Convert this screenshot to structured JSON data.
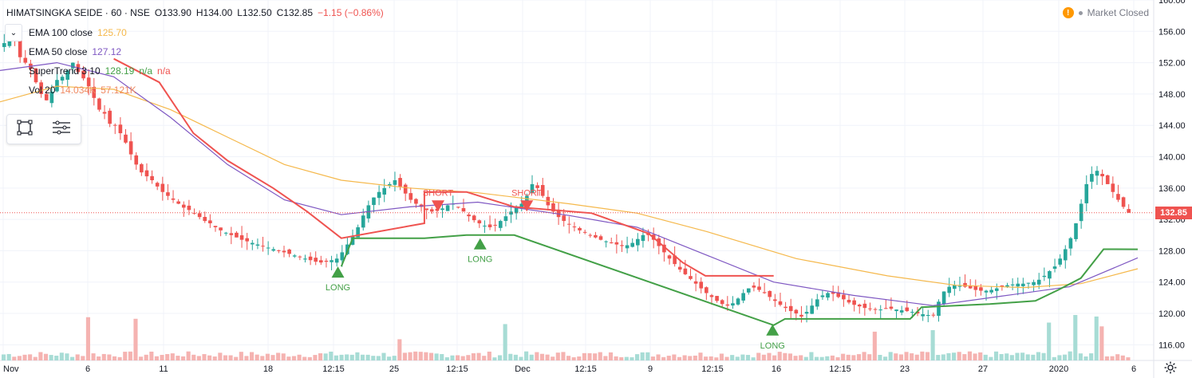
{
  "header": {
    "symbol": "HIMATSINGKA SEIDE · 60 · NSE",
    "open": "O133.90",
    "high": "H134.00",
    "low": "L132.50",
    "close": "C132.85",
    "change": "−1.15 (−0.86%)",
    "market_status": "Market Closed",
    "warning_icon": "!"
  },
  "indicators": [
    {
      "name": "EMA 100 close",
      "value": "125.70",
      "color": "#f5b84b"
    },
    {
      "name": "EMA 50 close",
      "value": "127.12",
      "color": "#7e57c2"
    },
    {
      "name": "SuperTrend 3 10",
      "value": "128.19",
      "extra": "n/a",
      "extra2": "n/a",
      "color": "#43a047"
    },
    {
      "name": "Vol 20",
      "value": "14.034K",
      "extra": "57.121K",
      "color": "#ef8a62"
    }
  ],
  "colors": {
    "up": "#26a69a",
    "down": "#ef5350",
    "st_up": "#43a047",
    "st_down": "#ef5350",
    "ema100": "#f5b84b",
    "ema50": "#7e57c2"
  },
  "last_price": "132.85",
  "chart_data": {
    "type": "candlestick",
    "y_axis": {
      "min": 114,
      "max": 160,
      "ticks": [
        "160.00",
        "156.00",
        "152.00",
        "148.00",
        "144.00",
        "140.00",
        "136.00",
        "132.00",
        "128.00",
        "124.00",
        "120.00",
        "116.00"
      ]
    },
    "x_axis": {
      "ticks": [
        "Nov",
        "6",
        "11",
        "18",
        "12:15",
        "25",
        "12:15",
        "Dec",
        "12:15",
        "9",
        "12:15",
        "16",
        "12:15",
        "23",
        "27",
        "2020",
        "6"
      ]
    },
    "last_price": 132.85,
    "close_path": [
      154.5,
      155.8,
      155.0,
      152.7,
      152.0,
      151.2,
      149.5,
      148.0,
      147.2,
      148.3,
      149.8,
      150.2,
      151.0,
      152.0,
      150.8,
      150.0,
      149.0,
      147.5,
      146.0,
      145.5,
      144.2,
      144.0,
      143.0,
      141.8,
      140.3,
      139.0,
      138.0,
      137.5,
      137.0,
      136.2,
      135.5,
      135.0,
      134.5,
      134.0,
      133.5,
      133.2,
      132.8,
      132.3,
      131.8,
      131.5,
      131.0,
      130.6,
      130.3,
      130.0,
      129.7,
      129.4,
      129.2,
      129.0,
      128.8,
      128.6,
      128.4,
      128.2,
      128.0,
      127.8,
      127.6,
      127.4,
      127.2,
      127.0,
      126.8,
      126.6,
      126.5,
      126.6,
      126.8,
      127.0,
      127.8,
      128.8,
      129.8,
      131.0,
      132.5,
      133.8,
      134.8,
      135.5,
      136.0,
      136.5,
      137.0,
      136.2,
      135.3,
      134.5,
      134.0,
      133.6,
      133.2,
      133.0,
      133.1,
      133.4,
      133.8,
      134.0,
      133.6,
      133.0,
      132.4,
      131.9,
      131.5,
      131.2,
      131.0,
      131.3,
      131.8,
      132.4,
      133.0,
      133.6,
      134.0,
      135.0,
      136.5,
      136.0,
      135.0,
      133.8,
      133.0,
      132.3,
      131.8,
      131.4,
      131.0,
      130.6,
      130.3,
      130.0,
      129.7,
      129.4,
      129.2,
      129.0,
      128.8,
      128.6,
      128.7,
      129.0,
      129.5,
      130.0,
      130.0,
      129.4,
      128.6,
      127.8,
      127.0,
      126.3,
      125.6,
      125.0,
      124.4,
      123.8,
      123.2,
      122.6,
      122.1,
      121.6,
      121.2,
      121.0,
      121.3,
      121.9,
      122.6,
      123.2,
      123.3,
      123.0,
      122.6,
      122.1,
      121.6,
      121.1,
      120.7,
      120.3,
      120.0,
      119.6,
      120.2,
      121.0,
      121.8,
      122.3,
      122.6,
      122.5,
      122.1,
      121.8,
      121.4,
      121.1,
      120.9,
      120.7,
      120.6,
      120.5,
      120.5,
      120.6,
      120.6,
      120.5,
      120.4,
      120.3,
      120.2,
      120.0,
      119.9,
      119.8,
      119.8,
      121.5,
      122.8,
      123.4,
      123.6,
      123.5,
      123.4,
      123.2,
      123.0,
      122.9,
      122.9,
      123.0,
      123.2,
      123.4,
      123.6,
      123.7,
      123.8,
      123.8,
      123.9,
      124.0,
      124.3,
      124.8,
      125.4,
      126.0,
      127.0,
      128.2,
      129.6,
      131.5,
      134.0,
      136.5,
      137.8,
      138.2,
      137.5,
      136.5,
      135.5,
      134.5,
      133.6,
      132.85
    ],
    "volume_spikes": [
      {
        "index": 16,
        "value": 57.1
      },
      {
        "index": 25,
        "value": 55.0
      },
      {
        "index": 75,
        "value": 28.0
      },
      {
        "index": 95,
        "value": 48.0
      },
      {
        "index": 165,
        "value": 38.0
      },
      {
        "index": 176,
        "value": 40.0
      },
      {
        "index": 198,
        "value": 50.0
      },
      {
        "index": 203,
        "value": 60.0
      },
      {
        "index": 207,
        "value": 58.0
      },
      {
        "index": 208,
        "value": 45.0
      }
    ],
    "ema100": [
      {
        "x": 0,
        "y": 147.0
      },
      {
        "x": 0.05,
        "y": 149.0
      },
      {
        "x": 0.1,
        "y": 148.6
      },
      {
        "x": 0.15,
        "y": 146.0
      },
      {
        "x": 0.2,
        "y": 142.5
      },
      {
        "x": 0.25,
        "y": 139.0
      },
      {
        "x": 0.3,
        "y": 137.0
      },
      {
        "x": 0.36,
        "y": 136.0
      },
      {
        "x": 0.42,
        "y": 135.4
      },
      {
        "x": 0.5,
        "y": 134.0
      },
      {
        "x": 0.56,
        "y": 132.8
      },
      {
        "x": 0.62,
        "y": 130.5
      },
      {
        "x": 0.7,
        "y": 127.0
      },
      {
        "x": 0.78,
        "y": 124.8
      },
      {
        "x": 0.84,
        "y": 123.6
      },
      {
        "x": 0.9,
        "y": 123.3
      },
      {
        "x": 0.95,
        "y": 123.8
      },
      {
        "x": 1.0,
        "y": 125.7
      }
    ],
    "ema50": [
      {
        "x": 0,
        "y": 151.0
      },
      {
        "x": 0.05,
        "y": 152.0
      },
      {
        "x": 0.1,
        "y": 150.2
      },
      {
        "x": 0.15,
        "y": 145.0
      },
      {
        "x": 0.2,
        "y": 139.0
      },
      {
        "x": 0.25,
        "y": 134.5
      },
      {
        "x": 0.3,
        "y": 132.6
      },
      {
        "x": 0.36,
        "y": 133.6
      },
      {
        "x": 0.42,
        "y": 134.2
      },
      {
        "x": 0.5,
        "y": 132.5
      },
      {
        "x": 0.56,
        "y": 131.0
      },
      {
        "x": 0.62,
        "y": 127.5
      },
      {
        "x": 0.68,
        "y": 124.0
      },
      {
        "x": 0.75,
        "y": 122.3
      },
      {
        "x": 0.82,
        "y": 121.0
      },
      {
        "x": 0.88,
        "y": 122.2
      },
      {
        "x": 0.94,
        "y": 123.4
      },
      {
        "x": 1.0,
        "y": 127.1
      }
    ],
    "supertrend_down": [
      {
        "x": 0.1,
        "y": 152.5
      },
      {
        "x": 0.14,
        "y": 149.5
      },
      {
        "x": 0.17,
        "y": 143.0
      },
      {
        "x": 0.2,
        "y": 139.5
      },
      {
        "x": 0.24,
        "y": 136.0
      },
      {
        "x": 0.27,
        "y": 133.0
      },
      {
        "x": 0.3,
        "y": 129.6
      },
      {
        "x": 0.373,
        "y": 131.5
      },
      {
        "x": 0.373,
        "y": 135.5
      },
      {
        "x": 0.41,
        "y": 135.5
      },
      {
        "x": 0.452,
        "y": 133.6
      },
      {
        "x": 0.52,
        "y": 132.8
      },
      {
        "x": 0.57,
        "y": 130.2
      },
      {
        "x": 0.6,
        "y": 126.5
      },
      {
        "x": 0.62,
        "y": 124.8
      },
      {
        "x": 0.68,
        "y": 124.8
      }
    ],
    "supertrend_up": [
      {
        "x": 0.3,
        "y": 126.0
      },
      {
        "x": 0.31,
        "y": 129.6
      },
      {
        "x": 0.373,
        "y": 129.6
      },
      {
        "x": 0.41,
        "y": 130.0
      },
      {
        "x": 0.452,
        "y": 130.0
      },
      {
        "x": 0.68,
        "y": 118.5
      },
      {
        "x": 0.69,
        "y": 119.3
      },
      {
        "x": 0.8,
        "y": 119.3
      },
      {
        "x": 0.81,
        "y": 120.8
      },
      {
        "x": 0.87,
        "y": 121.2
      },
      {
        "x": 0.91,
        "y": 121.6
      },
      {
        "x": 0.93,
        "y": 123.0
      },
      {
        "x": 0.95,
        "y": 124.5
      },
      {
        "x": 0.97,
        "y": 128.2
      },
      {
        "x": 1.0,
        "y": 128.19
      }
    ],
    "signals": [
      {
        "type": "LONG",
        "x": 0.297,
        "price": 126.0,
        "label": "LONG"
      },
      {
        "type": "SHORT",
        "x": 0.385,
        "price": 133.0,
        "label": "SHORT"
      },
      {
        "type": "LONG",
        "x": 0.422,
        "price": 129.6,
        "label": "LONG"
      },
      {
        "type": "SHORT",
        "x": 0.463,
        "price": 133.0,
        "label": "SHORT"
      },
      {
        "type": "LONG",
        "x": 0.679,
        "price": 118.6,
        "label": "LONG"
      }
    ]
  }
}
